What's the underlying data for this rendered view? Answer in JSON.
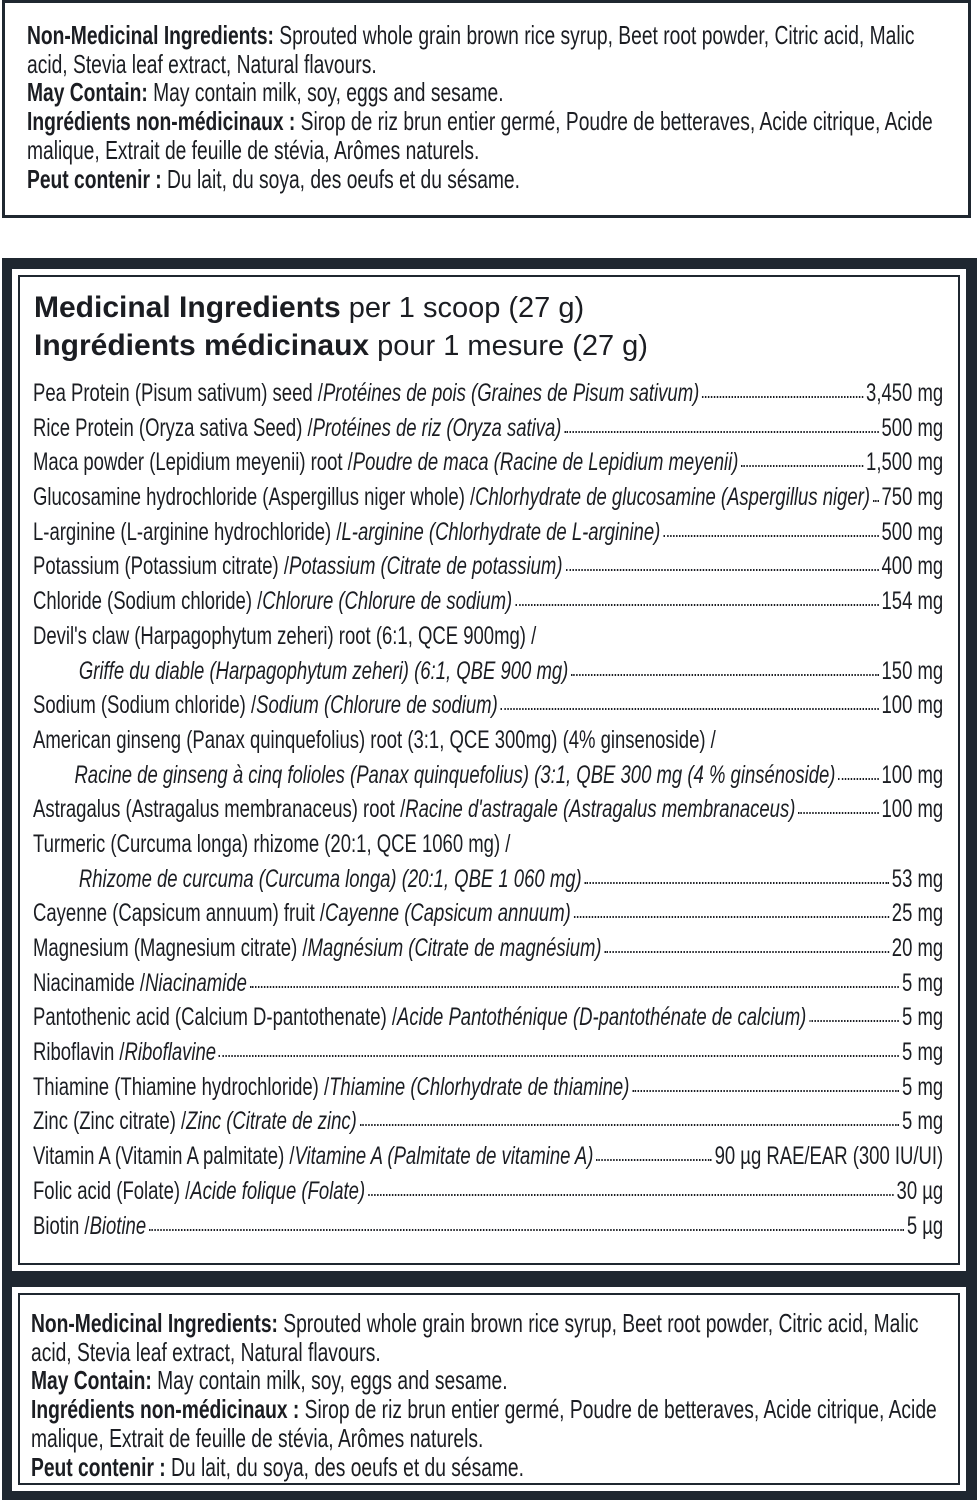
{
  "non_medicinal": {
    "nm_label": "Non-Medicinal Ingredients:",
    "nm_text": " Sprouted whole grain brown rice syrup, Beet root powder, Citric acid, Malic acid, Stevia leaf extract, Natural flavours.",
    "may_label": "May Contain:",
    "may_text": " May contain milk, soy, eggs and sesame.",
    "fr_label": "Ingrédients non-médicinaux :",
    "fr_text": "  Sirop de riz brun entier germé, Poudre de betteraves, Acide citrique, Acide malique, Extrait de feuille de stévia, Arômes naturels.",
    "peut_label": "Peut contenir :",
    "peut_text": " Du lait, du soya, des oeufs et du sésame."
  },
  "medicinal": {
    "title_en": "Medicinal Ingredients",
    "serving_en": " per 1 scoop (27 g)",
    "title_fr": "Ingrédients médicinaux",
    "serving_fr": " pour 1 mesure (27 g)",
    "rows": [
      {
        "en": "Pea Protein (Pisum sativum) seed / ",
        "fr": "Protéines de pois (Graines de Pisum sativum)",
        "amount": "3,450 mg"
      },
      {
        "en": "Rice Protein (Oryza sativa Seed) / ",
        "fr": "Protéines de riz (Oryza sativa)",
        "amount": "500 mg"
      },
      {
        "en": "Maca powder (Lepidium meyenii) root / ",
        "fr": "Poudre de maca (Racine de Lepidium meyenii)",
        "amount": "1,500 mg"
      },
      {
        "en": "Glucosamine hydrochloride (Aspergillus niger whole) / ",
        "fr": "Chlorhydrate de glucosamine (Aspergillus niger)",
        "amount": "750 mg"
      },
      {
        "en": "L-arginine (L-arginine hydrochloride) / ",
        "fr": "L-arginine (Chlorhydrate de L-arginine)",
        "amount": "500 mg"
      },
      {
        "en": "Potassium (Potassium citrate) / ",
        "fr": "Potassium (Citrate de potassium)",
        "amount": "400 mg"
      },
      {
        "en": "Chloride (Sodium chloride) / ",
        "fr": "Chlorure (Chlorure de sodium)",
        "amount": "154 mg"
      },
      {
        "en": "Devil's claw (Harpagophytum zeheri) root (6:1, QCE 900mg)  /",
        "fr": "",
        "amount": "",
        "first": true
      },
      {
        "en": "",
        "fr": "Griffe du diable (Harpagophytum zeheri)  (6:1, QBE 900 mg)",
        "amount": "150 mg",
        "cont": true
      },
      {
        "en": "Sodium (Sodium chloride) / ",
        "fr": "Sodium (Chlorure de sodium)",
        "amount": "100 mg"
      },
      {
        "en": "American ginseng (Panax quinquefolius) root (3:1, QCE 300mg) (4% ginsenoside) /",
        "fr": "",
        "amount": "",
        "first": true
      },
      {
        "en": "",
        "fr": "Racine de ginseng à cinq folioles (Panax quinquefolius) (3:1, QBE 300 mg (4 % ginsénoside)",
        "amount": "100 mg",
        "cont": true,
        "ind2": true
      },
      {
        "en": "Astragalus (Astragalus membranaceus) root / ",
        "fr": "Racine d'astragale (Astragalus membranaceus)",
        "amount": "100 mg"
      },
      {
        "en": "Turmeric (Curcuma longa) rhizome (20:1, QCE 1060 mg) /",
        "fr": "",
        "amount": "",
        "first": true
      },
      {
        "en": "",
        "fr": "Rhizome de curcuma (Curcuma longa) (20:1, QBE 1 060 mg)",
        "amount": "53 mg",
        "cont": true
      },
      {
        "en": "Cayenne (Capsicum annuum) fruit / ",
        "fr": "Cayenne (Capsicum annuum)",
        "amount": "25 mg"
      },
      {
        "en": "Magnesium (Magnesium citrate) / ",
        "fr": "Magnésium (Citrate de magnésium)",
        "amount": "20 mg"
      },
      {
        "en": "Niacinamide / ",
        "fr": "Niacinamide",
        "amount": "5 mg"
      },
      {
        "en": "Pantothenic acid (Calcium D-pantothenate) / ",
        "fr": "Acide Pantothénique (D-pantothénate de calcium)",
        "amount": "5 mg"
      },
      {
        "en": "Riboflavin / ",
        "fr": "Riboflavine",
        "amount": "5 mg"
      },
      {
        "en": "Thiamine (Thiamine hydrochloride) / ",
        "fr": "Thiamine (Chlorhydrate de thiamine)",
        "amount": "5 mg"
      },
      {
        "en": "Zinc (Zinc citrate) / ",
        "fr": "Zinc (Citrate de zinc)",
        "amount": "5 mg"
      },
      {
        "en": "Vitamin A (Vitamin A palmitate) / ",
        "fr": "Vitamine A (Palmitate de vitamine A)",
        "amount": "90 µg RAE/EAR (300 IU/UI)"
      },
      {
        "en": "Folic acid (Folate) / ",
        "fr": "Acide folique (Folate)",
        "amount": "30 µg"
      },
      {
        "en": "Biotin / ",
        "fr": "Biotine",
        "amount": "5 µg"
      }
    ]
  },
  "colors": {
    "frame": "#1f2730",
    "text": "#1b1d22"
  }
}
